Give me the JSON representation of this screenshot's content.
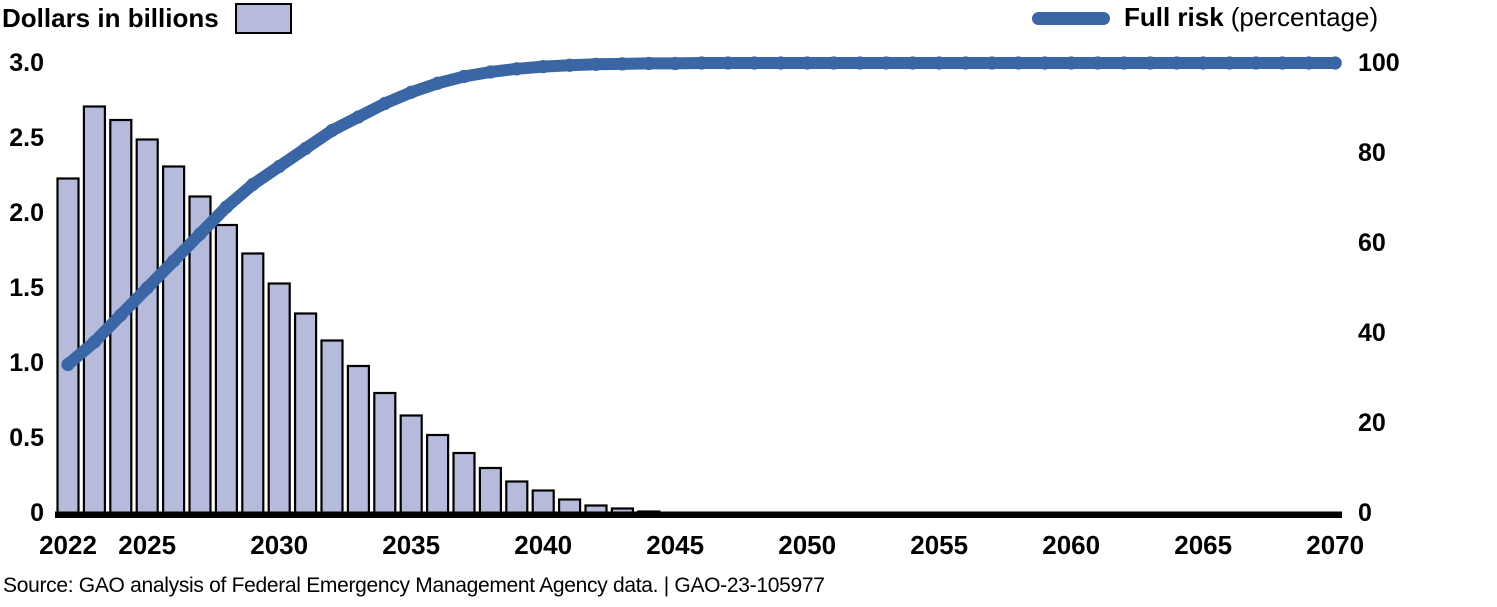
{
  "legend": {
    "bars_label": "Dollars in billions",
    "line_label_bold": "Full risk",
    "line_label_normal": "(percentage)"
  },
  "source_line": "Source: GAO analysis of Federal Emergency Management Agency data.  |  GAO-23-105977",
  "colors": {
    "bar_fill": "#b6bbdc",
    "bar_stroke": "#000000",
    "line": "#3a66a5",
    "axis": "#000000",
    "text": "#000000"
  },
  "chart_data": {
    "type": "bar",
    "subtype": "bar-line-combo",
    "title": "",
    "xlabel": "",
    "x_axis": {
      "tick_labels": [
        "2022",
        "2025",
        "2030",
        "2035",
        "2040",
        "2045",
        "2050",
        "2055",
        "2060",
        "2065",
        "2070"
      ],
      "range": [
        2022,
        2070
      ]
    },
    "left_axis": {
      "label": "Dollars in billions",
      "tick_labels": [
        "3.0",
        "2.5",
        "2.0",
        "1.5",
        "1.0",
        "0.5",
        "0"
      ],
      "range": [
        0,
        3.0
      ]
    },
    "right_axis": {
      "label": "Full risk (percentage)",
      "tick_labels": [
        "100",
        "80",
        "60",
        "40",
        "20",
        "0"
      ],
      "range": [
        0,
        100
      ]
    },
    "grid": "off",
    "legend_position": "top",
    "series": [
      {
        "name": "Dollars in billions",
        "type": "bar",
        "axis": "left",
        "start_year": 2022,
        "values": [
          2.23,
          2.71,
          2.62,
          2.49,
          2.31,
          2.11,
          1.92,
          1.73,
          1.53,
          1.33,
          1.15,
          0.98,
          0.8,
          0.65,
          0.52,
          0.4,
          0.3,
          0.21,
          0.15,
          0.09,
          0.05,
          0.03,
          0.01
        ]
      },
      {
        "name": "Full risk",
        "type": "line",
        "axis": "right",
        "start_year": 2022,
        "values": [
          33,
          38,
          44,
          50,
          56,
          62,
          68,
          73,
          77,
          81,
          85,
          88,
          91,
          93.5,
          95.5,
          97,
          98,
          98.7,
          99.2,
          99.5,
          99.7,
          99.8,
          99.9,
          99.9,
          100,
          100,
          100,
          100,
          100,
          100,
          100,
          100,
          100,
          100,
          100,
          100,
          100,
          100,
          100,
          100,
          100,
          100,
          100,
          100,
          100,
          100,
          100,
          100,
          100
        ]
      }
    ]
  }
}
